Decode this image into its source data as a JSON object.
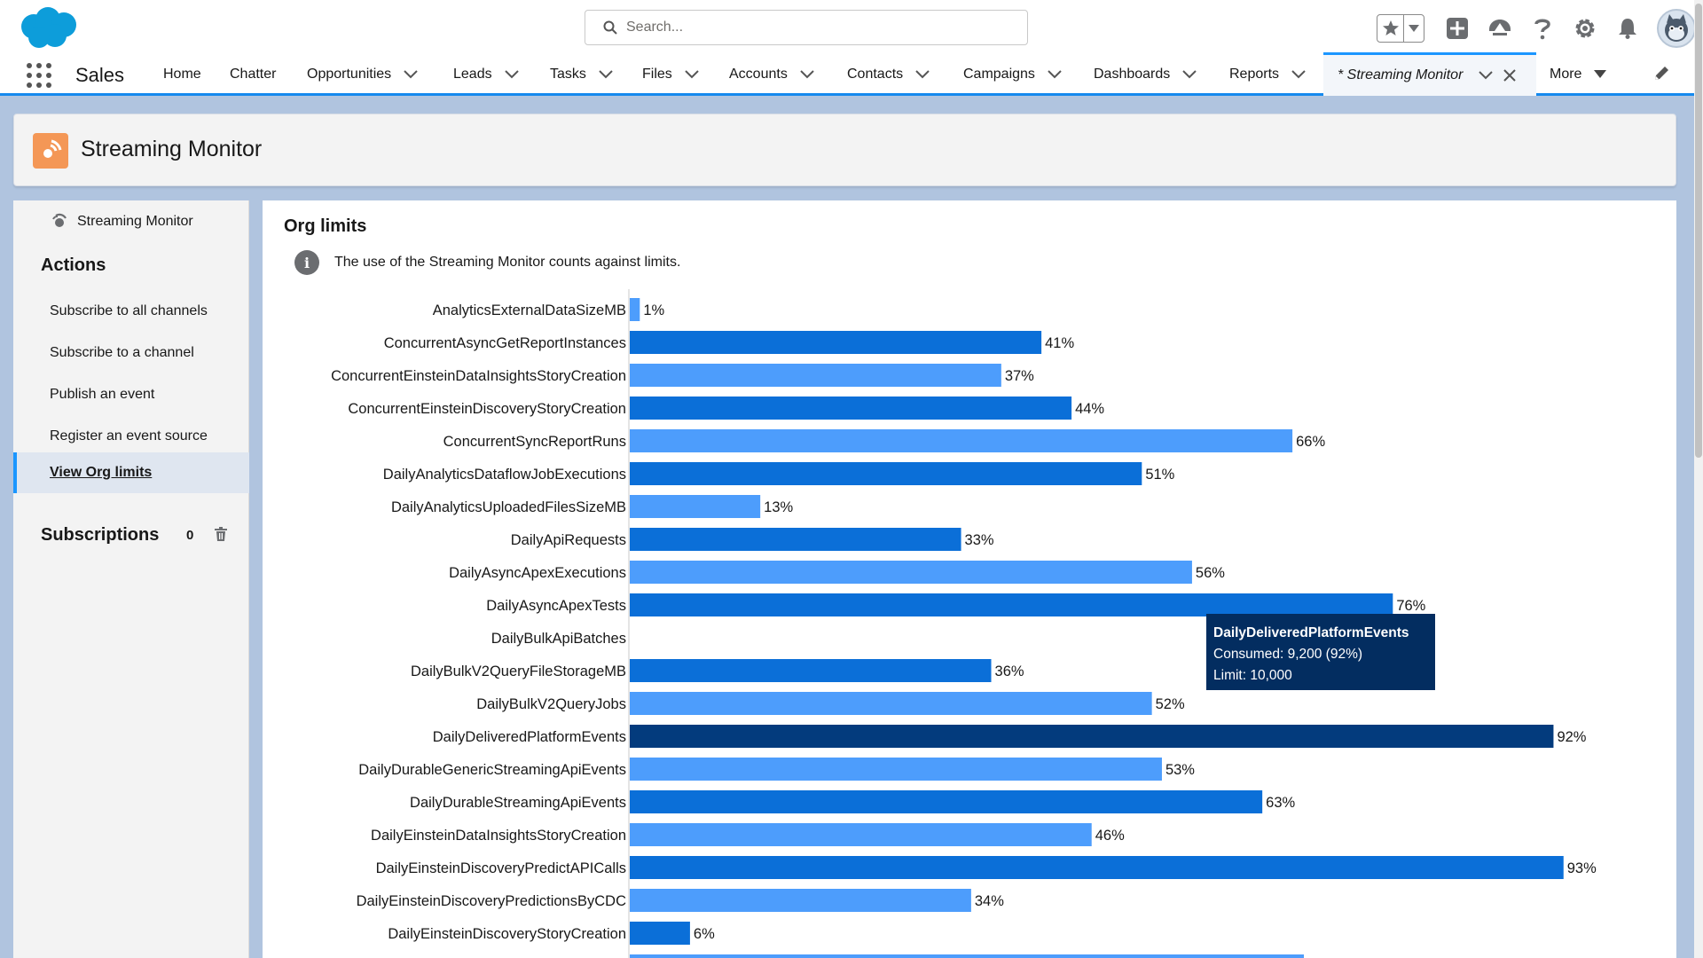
{
  "header": {
    "search_placeholder": "Search...",
    "icons": [
      "cloud-logo-icon",
      "search-icon",
      "star-icon",
      "chevron-down-icon",
      "plus-icon",
      "trailhead-icon",
      "help-icon",
      "gear-icon",
      "bell-icon",
      "avatar"
    ]
  },
  "nav": {
    "app_name": "Sales",
    "items": [
      {
        "label": "Home"
      },
      {
        "label": "Chatter"
      },
      {
        "label": "Opportunities"
      },
      {
        "label": "Leads"
      },
      {
        "label": "Tasks"
      },
      {
        "label": "Files"
      },
      {
        "label": "Accounts"
      },
      {
        "label": "Contacts"
      },
      {
        "label": "Campaigns"
      },
      {
        "label": "Dashboards"
      },
      {
        "label": "Reports"
      }
    ],
    "active_tab": "* Streaming Monitor",
    "more_label": "More"
  },
  "page": {
    "title": "Streaming Monitor"
  },
  "sidebar": {
    "top_label": "Streaming Monitor",
    "actions_heading": "Actions",
    "actions": [
      {
        "label": "Subscribe to all channels"
      },
      {
        "label": "Subscribe to a channel"
      },
      {
        "label": "Publish an event"
      },
      {
        "label": "Register an event source"
      },
      {
        "label": "View Org limits"
      }
    ],
    "subscriptions_heading": "Subscriptions",
    "subscriptions_count": "0"
  },
  "main": {
    "title": "Org limits",
    "info_text": "The use of the Streaming Monitor counts against limits."
  },
  "tooltip": {
    "title": "DailyDeliveredPlatformEvents",
    "consumed": "Consumed: 9,200 (92%)",
    "limit": "Limit: 10,000"
  },
  "colors": {
    "bar_dark": "#0b6fd8",
    "bar_light": "#4d9dfc",
    "bar_highlight": "#033b7d",
    "nav_accent": "#1b96ff"
  },
  "chart_data": {
    "type": "bar",
    "orientation": "horizontal",
    "unit": "%",
    "xlim": [
      0,
      100
    ],
    "highlighted": "DailyDeliveredPlatformEvents",
    "categories": [
      "AnalyticsExternalDataSizeMB",
      "ConcurrentAsyncGetReportInstances",
      "ConcurrentEinsteinDataInsightsStoryCreation",
      "ConcurrentEinsteinDiscoveryStoryCreation",
      "ConcurrentSyncReportRuns",
      "DailyAnalyticsDataflowJobExecutions",
      "DailyAnalyticsUploadedFilesSizeMB",
      "DailyApiRequests",
      "DailyAsyncApexExecutions",
      "DailyAsyncApexTests",
      "DailyBulkApiBatches",
      "DailyBulkV2QueryFileStorageMB",
      "DailyBulkV2QueryJobs",
      "DailyDeliveredPlatformEvents",
      "DailyDurableGenericStreamingApiEvents",
      "DailyDurableStreamingApiEvents",
      "DailyEinsteinDataInsightsStoryCreation",
      "DailyEinsteinDiscoveryPredictAPICalls",
      "DailyEinsteinDiscoveryPredictionsByCDC",
      "DailyEinsteinDiscoveryStoryCreation"
    ],
    "values": [
      1,
      41,
      37,
      44,
      66,
      51,
      13,
      33,
      56,
      76,
      null,
      36,
      52,
      92,
      53,
      63,
      46,
      93,
      34,
      6
    ],
    "labels": [
      "1%",
      "41%",
      "37%",
      "44%",
      "66%",
      "51%",
      "13%",
      "33%",
      "56%",
      "76%",
      "",
      "36%",
      "52%",
      "92%",
      "53%",
      "63%",
      "46%",
      "93%",
      "34%",
      "6%"
    ]
  }
}
